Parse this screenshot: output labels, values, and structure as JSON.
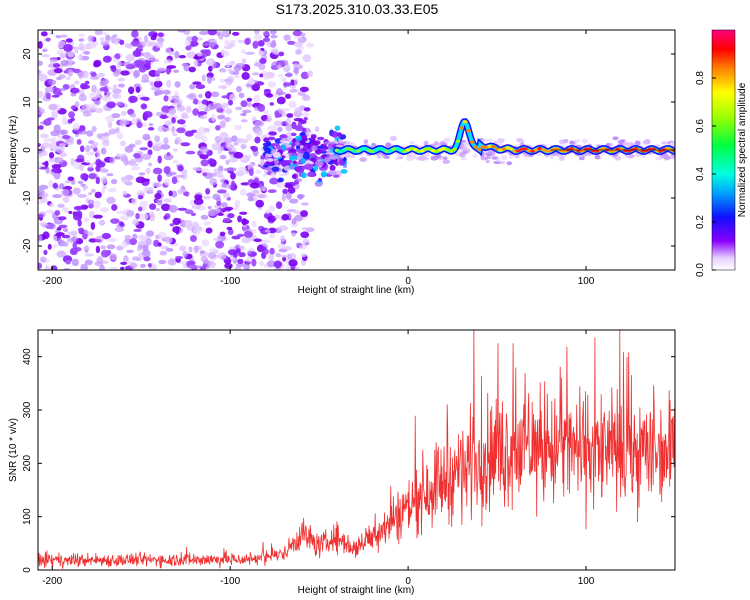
{
  "title": "S173.2025.310.03.33.E05",
  "chart_data": [
    {
      "type": "heatmap",
      "xlabel": "Height of straight line (km)",
      "ylabel": "Frequency (Hz)",
      "xlim": [
        -208,
        150
      ],
      "ylim": [
        -25,
        25
      ],
      "xticks": [
        -200,
        -100,
        0,
        100
      ],
      "yticks": [
        -20,
        -10,
        0,
        10,
        20
      ],
      "colorbar": {
        "label": "Normalized spectral amplitude",
        "range": [
          0,
          1
        ],
        "ticks": [
          0.0,
          0.2,
          0.4,
          0.6,
          0.8
        ],
        "tick_labels": [
          "0.0",
          "0.2",
          "0.4",
          "0.6",
          "0.8"
        ],
        "colormap": "rainbow (purple→blue→cyan→green→yellow→red→magenta)"
      },
      "features": {
        "diffuse_noise_region_x": [
          -208,
          -65
        ],
        "signal_line_frequency_hz": 0,
        "signal_start_x": -40,
        "bump_near_x": 32,
        "bump_peak_frequency_hz": 6
      },
      "grid": false
    },
    {
      "type": "line",
      "xlabel": "Height of straight line (km)",
      "ylabel": "SNR (10 * v/v)",
      "xlim": [
        -208,
        150
      ],
      "ylim": [
        0,
        450
      ],
      "xticks": [
        -200,
        -100,
        0,
        100
      ],
      "yticks": [
        0,
        100,
        200,
        300,
        400
      ],
      "color": "#f03030",
      "trend": {
        "x": [
          -208,
          -90,
          -70,
          -60,
          -50,
          -40,
          -30,
          -10,
          0,
          10,
          20,
          30,
          40,
          60,
          80,
          100,
          120,
          150
        ],
        "y": [
          18,
          20,
          30,
          70,
          45,
          60,
          40,
          90,
          120,
          150,
          170,
          190,
          210,
          230,
          230,
          225,
          220,
          225
        ]
      },
      "peak": {
        "x": 37,
        "y": 450
      },
      "grid": false
    }
  ]
}
